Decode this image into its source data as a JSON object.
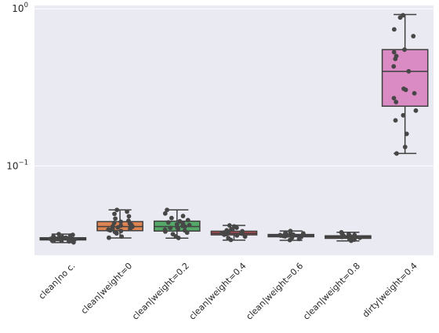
{
  "chart_data": {
    "type": "box",
    "yscale": "log",
    "ylim": [
      0.027,
      1.05
    ],
    "grid": true,
    "yticks": [
      {
        "value": 1.0,
        "base": "10",
        "exp": "0"
      },
      {
        "value": 0.1,
        "base": "10",
        "exp": "−1"
      }
    ],
    "categories": [
      "clean|no c.",
      "clean|weight=0",
      "clean|weight=0.2",
      "clean|weight=0.4",
      "clean|weight=0.6",
      "clean|weight=0.8",
      "dirty|weight=0.4"
    ],
    "colors": [
      "#4c72b0",
      "#dd8452",
      "#55a868",
      "#c44e52",
      "#8172b3",
      "#937860",
      "#da8bc3"
    ],
    "boxes": [
      {
        "min": 0.0325,
        "q1": 0.0338,
        "median": 0.0343,
        "q3": 0.0349,
        "max": 0.0368
      },
      {
        "min": 0.0348,
        "q1": 0.0387,
        "median": 0.0411,
        "q3": 0.0442,
        "max": 0.0525
      },
      {
        "min": 0.0347,
        "q1": 0.0385,
        "median": 0.0411,
        "q3": 0.0445,
        "max": 0.0525
      },
      {
        "min": 0.0337,
        "q1": 0.0364,
        "median": 0.0372,
        "q3": 0.0384,
        "max": 0.0418
      },
      {
        "min": 0.0336,
        "q1": 0.0354,
        "median": 0.0361,
        "q3": 0.0366,
        "max": 0.0385
      },
      {
        "min": 0.0333,
        "q1": 0.0346,
        "median": 0.0353,
        "q3": 0.0359,
        "max": 0.0378
      },
      {
        "min": 0.12,
        "q1": 0.24,
        "median": 0.4,
        "q3": 0.55,
        "max": 0.92
      }
    ],
    "points": [
      [
        0.0326,
        0.0331,
        0.0334,
        0.0336,
        0.0337,
        0.0338,
        0.0339,
        0.034,
        0.0341,
        0.0342,
        0.0343,
        0.0343,
        0.0344,
        0.0345,
        0.0346,
        0.0347,
        0.0348,
        0.0349,
        0.0351,
        0.0353,
        0.0356,
        0.036,
        0.0364,
        0.0368
      ],
      [
        0.0349,
        0.0355,
        0.0372,
        0.038,
        0.0385,
        0.0389,
        0.0393,
        0.0398,
        0.0402,
        0.0406,
        0.041,
        0.0413,
        0.0417,
        0.0422,
        0.0428,
        0.0434,
        0.0441,
        0.0448,
        0.0462,
        0.0478,
        0.0495,
        0.0512,
        0.0525
      ],
      [
        0.0348,
        0.0356,
        0.0368,
        0.0376,
        0.0382,
        0.0388,
        0.0393,
        0.0398,
        0.0403,
        0.0407,
        0.0411,
        0.0415,
        0.042,
        0.0425,
        0.0431,
        0.0437,
        0.0444,
        0.0452,
        0.0466,
        0.048,
        0.0498,
        0.0525
      ],
      [
        0.0338,
        0.0347,
        0.0355,
        0.0361,
        0.0365,
        0.0368,
        0.037,
        0.0372,
        0.0374,
        0.0377,
        0.038,
        0.0384,
        0.0389,
        0.0396,
        0.0404,
        0.0412,
        0.0418
      ],
      [
        0.0337,
        0.0343,
        0.0349,
        0.0353,
        0.0356,
        0.0358,
        0.036,
        0.0361,
        0.0363,
        0.0365,
        0.0368,
        0.0372,
        0.0376,
        0.038,
        0.0385
      ],
      [
        0.0334,
        0.0339,
        0.0343,
        0.0346,
        0.0349,
        0.0351,
        0.0353,
        0.0355,
        0.0357,
        0.036,
        0.0363,
        0.0367,
        0.0372,
        0.0378
      ],
      [
        0.12,
        0.132,
        0.16,
        0.195,
        0.21,
        0.225,
        0.255,
        0.27,
        0.29,
        0.305,
        0.31,
        0.4,
        0.43,
        0.48,
        0.5,
        0.53,
        0.55,
        0.67,
        0.74,
        0.88,
        0.91
      ]
    ]
  }
}
